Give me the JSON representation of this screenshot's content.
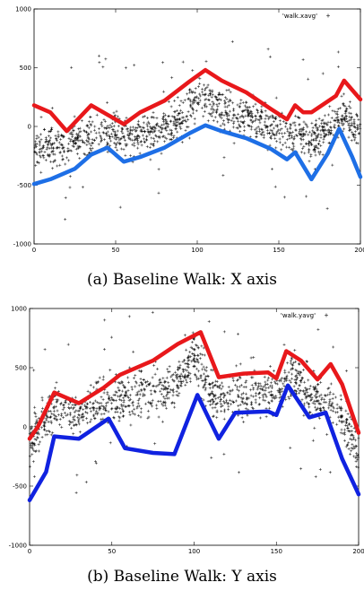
{
  "chart_data": [
    {
      "type": "scatter",
      "caption": "(a) Baseline Walk: X axis",
      "legend": "'walk.xavg'",
      "legend_position": "top-right",
      "xlim": [
        0,
        200
      ],
      "ylim": [
        -1000,
        1000
      ],
      "xticks": [
        0,
        50,
        100,
        150,
        200
      ],
      "yticks": [
        -1000,
        -500,
        0,
        500,
        1000
      ],
      "scatter_center": [
        [
          0,
          -200
        ],
        [
          10,
          -170
        ],
        [
          20,
          -150
        ],
        [
          30,
          -110
        ],
        [
          40,
          -60
        ],
        [
          50,
          -40
        ],
        [
          60,
          -90
        ],
        [
          70,
          -50
        ],
        [
          80,
          0
        ],
        [
          90,
          60
        ],
        [
          100,
          250
        ],
        [
          105,
          280
        ],
        [
          110,
          180
        ],
        [
          120,
          120
        ],
        [
          130,
          80
        ],
        [
          140,
          40
        ],
        [
          150,
          -20
        ],
        [
          160,
          -40
        ],
        [
          170,
          -140
        ],
        [
          180,
          -20
        ],
        [
          190,
          100
        ],
        [
          200,
          -60
        ]
      ],
      "scatter_spread": 160,
      "series": [
        {
          "color": "#e8181b",
          "points": [
            [
              0,
              180
            ],
            [
              10,
              120
            ],
            [
              20,
              -40
            ],
            [
              35,
              180
            ],
            [
              45,
              100
            ],
            [
              55,
              20
            ],
            [
              65,
              120
            ],
            [
              80,
              220
            ],
            [
              95,
              380
            ],
            [
              105,
              480
            ],
            [
              115,
              390
            ],
            [
              130,
              290
            ],
            [
              145,
              150
            ],
            [
              155,
              60
            ],
            [
              160,
              180
            ],
            [
              165,
              120
            ],
            [
              170,
              120
            ],
            [
              185,
              260
            ],
            [
              190,
              390
            ],
            [
              200,
              230
            ]
          ]
        },
        {
          "color": "#1e6fe6",
          "points": [
            [
              0,
              -490
            ],
            [
              10,
              -450
            ],
            [
              25,
              -360
            ],
            [
              35,
              -240
            ],
            [
              45,
              -180
            ],
            [
              55,
              -300
            ],
            [
              65,
              -260
            ],
            [
              80,
              -180
            ],
            [
              95,
              -60
            ],
            [
              105,
              10
            ],
            [
              115,
              -40
            ],
            [
              130,
              -100
            ],
            [
              145,
              -190
            ],
            [
              155,
              -280
            ],
            [
              160,
              -220
            ],
            [
              170,
              -450
            ],
            [
              180,
              -230
            ],
            [
              187,
              -20
            ],
            [
              195,
              -260
            ],
            [
              200,
              -430
            ]
          ]
        }
      ]
    },
    {
      "type": "scatter",
      "caption": "(b) Baseline Walk: Y axis",
      "legend": "'walk.yavg'",
      "legend_position": "top-right",
      "xlim": [
        0,
        200
      ],
      "ylim": [
        -1000,
        1000
      ],
      "xticks": [
        0,
        50,
        100,
        150,
        200
      ],
      "yticks": [
        -1000,
        -500,
        0,
        500,
        1000
      ],
      "scatter_center": [
        [
          0,
          -150
        ],
        [
          10,
          100
        ],
        [
          20,
          160
        ],
        [
          30,
          100
        ],
        [
          40,
          220
        ],
        [
          50,
          230
        ],
        [
          60,
          240
        ],
        [
          70,
          280
        ],
        [
          80,
          300
        ],
        [
          90,
          380
        ],
        [
          100,
          600
        ],
        [
          110,
          280
        ],
        [
          120,
          250
        ],
        [
          130,
          280
        ],
        [
          140,
          280
        ],
        [
          150,
          300
        ],
        [
          160,
          450
        ],
        [
          170,
          230
        ],
        [
          180,
          250
        ],
        [
          190,
          100
        ],
        [
          200,
          -250
        ]
      ],
      "scatter_spread": 180,
      "series": [
        {
          "color": "#e8181b",
          "points": [
            [
              0,
              -100
            ],
            [
              5,
              0
            ],
            [
              15,
              290
            ],
            [
              30,
              200
            ],
            [
              45,
              330
            ],
            [
              55,
              440
            ],
            [
              75,
              560
            ],
            [
              90,
              700
            ],
            [
              104,
              800
            ],
            [
              115,
              420
            ],
            [
              130,
              450
            ],
            [
              145,
              460
            ],
            [
              150,
              410
            ],
            [
              156,
              640
            ],
            [
              165,
              560
            ],
            [
              175,
              400
            ],
            [
              183,
              530
            ],
            [
              190,
              360
            ],
            [
              200,
              -50
            ]
          ]
        },
        {
          "color": "#1022e0",
          "points": [
            [
              0,
              -620
            ],
            [
              5,
              -500
            ],
            [
              10,
              -380
            ],
            [
              15,
              -80
            ],
            [
              30,
              -100
            ],
            [
              48,
              70
            ],
            [
              58,
              -180
            ],
            [
              75,
              -220
            ],
            [
              88,
              -230
            ],
            [
              102,
              270
            ],
            [
              110,
              40
            ],
            [
              115,
              -100
            ],
            [
              125,
              120
            ],
            [
              145,
              130
            ],
            [
              150,
              100
            ],
            [
              157,
              350
            ],
            [
              170,
              80
            ],
            [
              180,
              120
            ],
            [
              190,
              -270
            ],
            [
              200,
              -570
            ]
          ]
        }
      ]
    }
  ]
}
